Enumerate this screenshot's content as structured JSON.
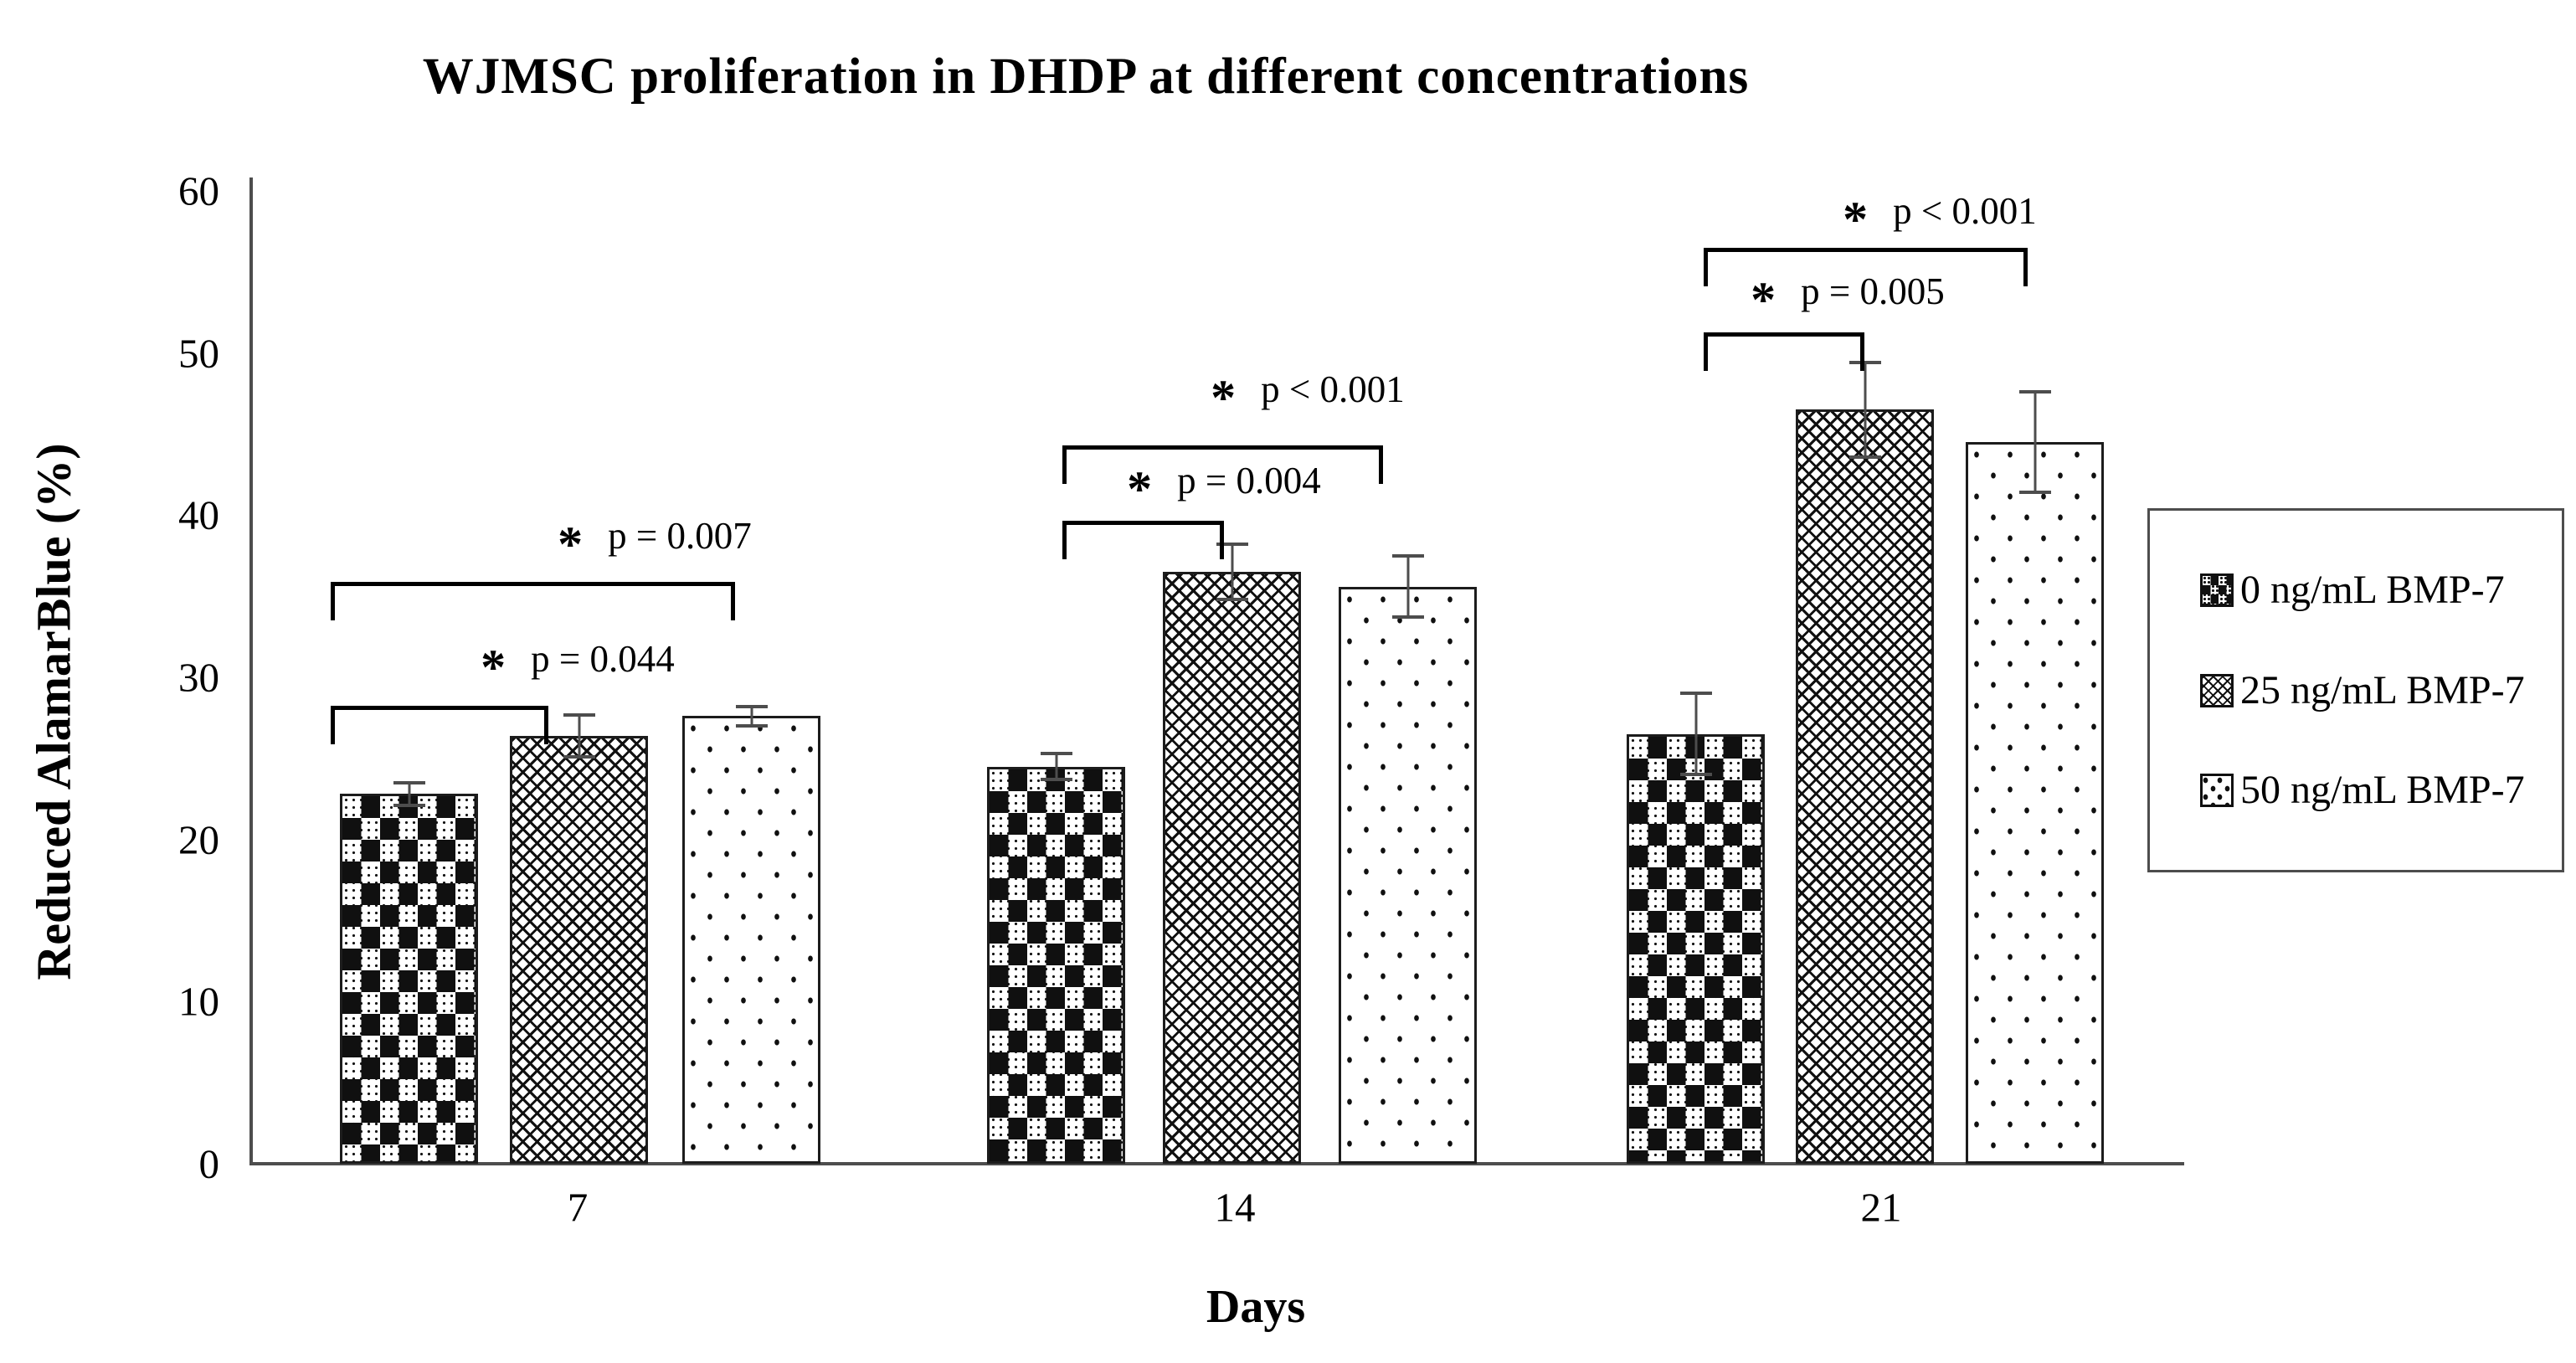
{
  "chart_data": {
    "type": "bar",
    "title": "WJMSC proliferation in DHDP at different concentrations",
    "xlabel": "Days",
    "ylabel": "Reduced AlamarBlue (%)",
    "categories": [
      "7",
      "14",
      "21"
    ],
    "ylim": [
      0,
      60
    ],
    "yticks": [
      0,
      10,
      20,
      30,
      40,
      50,
      60
    ],
    "grid": false,
    "legend_position": "right",
    "bar_fill_patterns": [
      "checker",
      "weave",
      "dots"
    ],
    "series": [
      {
        "name": "0 ng/mL BMP-7",
        "pattern": "checker",
        "values": [
          22.8,
          24.5,
          26.5
        ],
        "errors": [
          0.8,
          0.9,
          2.6
        ]
      },
      {
        "name": "25 ng/mL BMP-7",
        "pattern": "weave",
        "values": [
          26.4,
          36.5,
          46.5
        ],
        "errors": [
          1.4,
          1.8,
          3.0
        ]
      },
      {
        "name": "50 ng/mL BMP-7",
        "pattern": "dots",
        "values": [
          27.6,
          35.6,
          44.5
        ],
        "errors": [
          0.7,
          2.0,
          3.2
        ]
      }
    ],
    "significance": [
      {
        "day": "7",
        "between": [
          "0 ng/mL BMP-7",
          "25 ng/mL BMP-7"
        ],
        "star": "*",
        "label": "p = 0.044"
      },
      {
        "day": "7",
        "between": [
          "0 ng/mL BMP-7",
          "50 ng/mL BMP-7"
        ],
        "star": "*",
        "label": "p = 0.007"
      },
      {
        "day": "14",
        "between": [
          "0 ng/mL BMP-7",
          "25 ng/mL BMP-7"
        ],
        "star": "*",
        "label": "p = 0.004"
      },
      {
        "day": "14",
        "between": [
          "0 ng/mL BMP-7",
          "50 ng/mL BMP-7"
        ],
        "star": "*",
        "label": "p < 0.001"
      },
      {
        "day": "21",
        "between": [
          "0 ng/mL BMP-7",
          "25 ng/mL BMP-7"
        ],
        "star": "*",
        "label": "p = 0.005"
      },
      {
        "day": "21",
        "between": [
          "0 ng/mL BMP-7",
          "50 ng/mL BMP-7"
        ],
        "star": "*",
        "label": "p < 0.001"
      }
    ],
    "colors": {
      "ink": "#000000",
      "axis": "#4d4d4d",
      "background": "#ffffff"
    }
  }
}
